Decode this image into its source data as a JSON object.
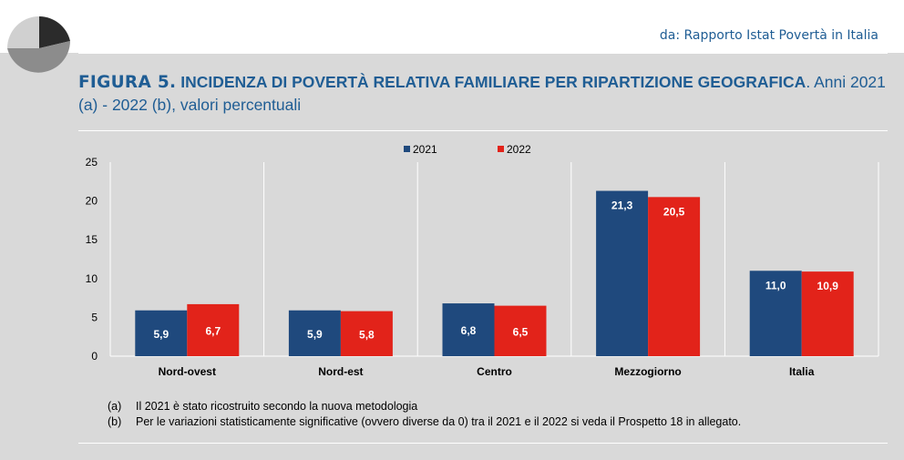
{
  "header": {
    "source": "da: Rapporto Istat Povertà in Italia",
    "figure_label": "FIGURA 5.",
    "figure_title_bold": "INCIDENZA DI POVERTÀ RELATIVA FAMILIARE PER RIPARTIZIONE GEOGRAFICA",
    "figure_title_rest": ". Anni 2021 (a) - 2022 (b), valori percentuali"
  },
  "colors": {
    "series_2021": "#1f497d",
    "series_2022": "#e2231a",
    "title_blue": "#1f5d94"
  },
  "chart_data": {
    "type": "bar",
    "categories": [
      "Nord-ovest",
      "Nord-est",
      "Centro",
      "Mezzogiorno",
      "Italia"
    ],
    "series": [
      {
        "name": "2021",
        "values": [
          5.9,
          5.9,
          6.8,
          21.3,
          11.0
        ],
        "labels": [
          "5,9",
          "5,9",
          "6,8",
          "21,3",
          "11,0"
        ]
      },
      {
        "name": "2022",
        "values": [
          6.7,
          5.8,
          6.5,
          20.5,
          10.9
        ],
        "labels": [
          "6,7",
          "5,8",
          "6,5",
          "20,5",
          "10,9"
        ]
      }
    ],
    "y_ticks": [
      "0",
      "5",
      "10",
      "15",
      "20",
      "25"
    ],
    "ylim": [
      0,
      25
    ],
    "grid": "vertical category separators",
    "legend_position": "top-center"
  },
  "notes": [
    {
      "key": "(a)",
      "text": "Il 2021 è stato ricostruito secondo la nuova metodologia"
    },
    {
      "key": "(b)",
      "text": "Per le variazioni statisticamente significative (ovvero diverse da 0) tra il 2021 e il 2022 si veda il Prospetto 18 in allegato."
    }
  ]
}
